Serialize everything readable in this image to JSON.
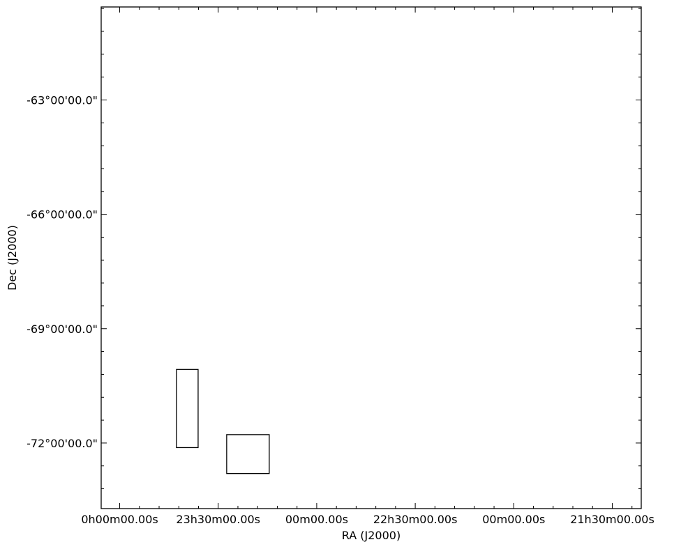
{
  "chart_data": {
    "type": "scatter",
    "title": "",
    "xlabel": "RA (J2000)",
    "ylabel": "Dec (J2000)",
    "x_unit": "hours (RA)",
    "y_unit": "degrees (Dec)",
    "xlim": [
      24.094,
      21.353
    ],
    "ylim": [
      -73.72,
      -60.56
    ],
    "x_ticks": [
      {
        "value": 24.0,
        "label": "0h00m00.00s"
      },
      {
        "value": 23.5,
        "label": "23h30m00.00s"
      },
      {
        "value": 23.0,
        "label": "00m00.00s"
      },
      {
        "value": 22.5,
        "label": "22h30m00.00s"
      },
      {
        "value": 22.0,
        "label": "00m00.00s"
      },
      {
        "value": 21.5,
        "label": "21h30m00.00s"
      }
    ],
    "y_ticks": [
      {
        "value": -63.0,
        "label": "-63°00'00.0\""
      },
      {
        "value": -66.0,
        "label": "-66°00'00.0\""
      },
      {
        "value": -69.0,
        "label": "-69°00'00.0\""
      },
      {
        "value": -72.0,
        "label": "-72°00'00.0\""
      }
    ],
    "grid": false,
    "legend": "none",
    "regions": [
      {
        "ra_min": 23.602,
        "ra_max": 23.712,
        "dec_min": -72.12,
        "dec_max": -70.07
      },
      {
        "ra_min": 23.241,
        "ra_max": 23.457,
        "dec_min": -72.8,
        "dec_max": -71.78
      }
    ]
  }
}
